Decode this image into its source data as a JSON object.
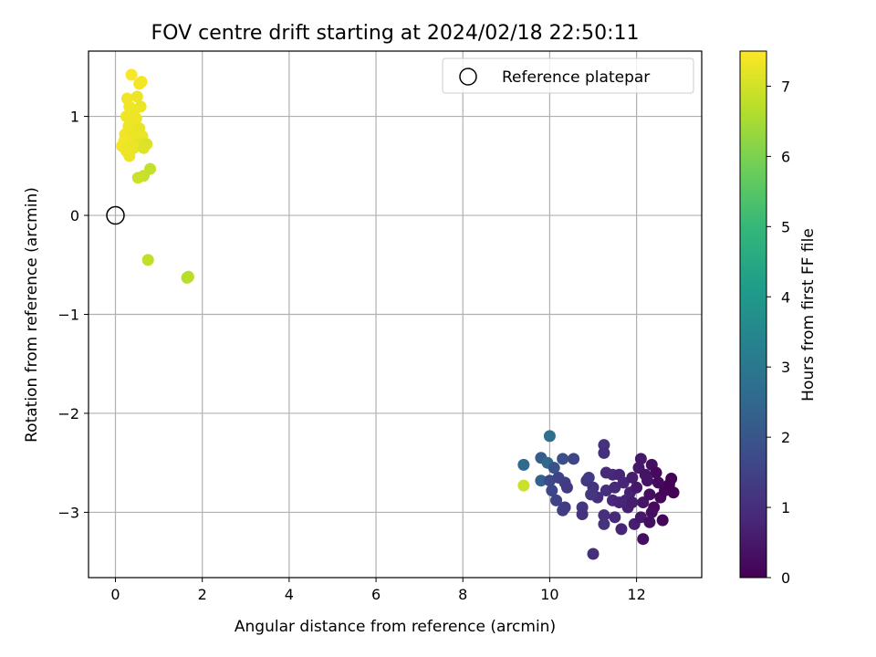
{
  "chart_data": {
    "type": "scatter",
    "title": "FOV centre drift starting at 2024/02/18 22:50:11",
    "xlabel": "Angular distance from reference (arcmin)",
    "ylabel": "Rotation from reference (arcmin)",
    "xlim": [
      -0.62,
      13.5
    ],
    "ylim": [
      -3.66,
      1.66
    ],
    "xticks": [
      0,
      2,
      4,
      6,
      8,
      10,
      12
    ],
    "xtick_labels": [
      "0",
      "2",
      "4",
      "6",
      "8",
      "10",
      "12"
    ],
    "yticks": [
      -3,
      -2,
      -1,
      0,
      1
    ],
    "ytick_labels": [
      "−3",
      "−2",
      "−1",
      "0",
      "1"
    ],
    "grid": true,
    "legend": {
      "placement": "top-right",
      "entries": [
        "Reference platepar"
      ]
    },
    "reference_point": {
      "x": 0,
      "y": 0,
      "label": "Reference platepar",
      "marker": "open-circle"
    },
    "colorbar": {
      "label": "Hours from first FF file",
      "colormap": "viridis",
      "range": [
        0,
        7.5
      ],
      "ticks": [
        0,
        1,
        2,
        3,
        4,
        5,
        6,
        7
      ],
      "tick_labels": [
        "0",
        "1",
        "2",
        "3",
        "4",
        "5",
        "6",
        "7"
      ]
    },
    "colors": {
      "viridis_stops": [
        "#440154",
        "#482878",
        "#3e4989",
        "#31688e",
        "#26828e",
        "#1f9e89",
        "#35b779",
        "#6ece58",
        "#b5de2b",
        "#fde725"
      ]
    },
    "points": [
      {
        "x": 0.37,
        "y": 1.42,
        "t": 7.45
      },
      {
        "x": 0.6,
        "y": 1.35,
        "t": 7.4
      },
      {
        "x": 0.55,
        "y": 1.33,
        "t": 7.38
      },
      {
        "x": 0.27,
        "y": 1.18,
        "t": 7.35
      },
      {
        "x": 0.5,
        "y": 1.2,
        "t": 7.3
      },
      {
        "x": 0.32,
        "y": 1.1,
        "t": 7.35
      },
      {
        "x": 0.58,
        "y": 1.1,
        "t": 7.3
      },
      {
        "x": 0.42,
        "y": 1.05,
        "t": 7.32
      },
      {
        "x": 0.25,
        "y": 1.0,
        "t": 7.34
      },
      {
        "x": 0.38,
        "y": 0.95,
        "t": 7.3
      },
      {
        "x": 0.48,
        "y": 0.98,
        "t": 7.31
      },
      {
        "x": 0.3,
        "y": 0.9,
        "t": 7.33
      },
      {
        "x": 0.55,
        "y": 0.88,
        "t": 7.25
      },
      {
        "x": 0.22,
        "y": 0.82,
        "t": 7.36
      },
      {
        "x": 0.4,
        "y": 0.82,
        "t": 7.3
      },
      {
        "x": 0.62,
        "y": 0.8,
        "t": 7.28
      },
      {
        "x": 0.35,
        "y": 0.78,
        "t": 7.3
      },
      {
        "x": 0.2,
        "y": 0.75,
        "t": 7.37
      },
      {
        "x": 0.48,
        "y": 0.75,
        "t": 7.27
      },
      {
        "x": 0.58,
        "y": 0.73,
        "t": 7.2
      },
      {
        "x": 0.72,
        "y": 0.72,
        "t": 7.1
      },
      {
        "x": 0.15,
        "y": 0.7,
        "t": 7.38
      },
      {
        "x": 0.28,
        "y": 0.7,
        "t": 7.32
      },
      {
        "x": 0.42,
        "y": 0.68,
        "t": 7.28
      },
      {
        "x": 0.65,
        "y": 0.68,
        "t": 7.15
      },
      {
        "x": 0.25,
        "y": 0.65,
        "t": 7.33
      },
      {
        "x": 0.32,
        "y": 0.6,
        "t": 7.3
      },
      {
        "x": 0.52,
        "y": 0.38,
        "t": 6.95
      },
      {
        "x": 0.65,
        "y": 0.4,
        "t": 6.9
      },
      {
        "x": 0.8,
        "y": 0.47,
        "t": 6.85
      },
      {
        "x": 0.75,
        "y": -0.45,
        "t": 6.8
      },
      {
        "x": 1.68,
        "y": -0.62,
        "t": 6.75
      },
      {
        "x": 1.65,
        "y": -0.63,
        "t": 6.7
      },
      {
        "x": 9.4,
        "y": -2.73,
        "t": 6.9
      },
      {
        "x": 10.0,
        "y": -2.23,
        "t": 2.8
      },
      {
        "x": 9.4,
        "y": -2.52,
        "t": 2.6
      },
      {
        "x": 9.8,
        "y": -2.45,
        "t": 2.2
      },
      {
        "x": 9.95,
        "y": -2.5,
        "t": 2.5
      },
      {
        "x": 10.3,
        "y": -2.46,
        "t": 1.8
      },
      {
        "x": 10.55,
        "y": -2.46,
        "t": 1.6
      },
      {
        "x": 10.1,
        "y": -2.55,
        "t": 1.9
      },
      {
        "x": 9.8,
        "y": -2.68,
        "t": 2.3
      },
      {
        "x": 10.0,
        "y": -2.68,
        "t": 1.7
      },
      {
        "x": 10.2,
        "y": -2.65,
        "t": 1.5
      },
      {
        "x": 10.35,
        "y": -2.7,
        "t": 1.4
      },
      {
        "x": 10.05,
        "y": -2.78,
        "t": 1.6
      },
      {
        "x": 10.4,
        "y": -2.75,
        "t": 1.3
      },
      {
        "x": 10.15,
        "y": -2.88,
        "t": 1.5
      },
      {
        "x": 10.3,
        "y": -2.98,
        "t": 1.4
      },
      {
        "x": 10.35,
        "y": -2.95,
        "t": 1.3
      },
      {
        "x": 10.75,
        "y": -2.95,
        "t": 1.2
      },
      {
        "x": 10.75,
        "y": -3.02,
        "t": 1.1
      },
      {
        "x": 10.85,
        "y": -2.68,
        "t": 1.2
      },
      {
        "x": 10.9,
        "y": -2.65,
        "t": 1.3
      },
      {
        "x": 11.0,
        "y": -2.75,
        "t": 1.1
      },
      {
        "x": 11.1,
        "y": -2.85,
        "t": 1.0
      },
      {
        "x": 10.95,
        "y": -2.82,
        "t": 1.2
      },
      {
        "x": 11.25,
        "y": -2.32,
        "t": 1.1
      },
      {
        "x": 11.25,
        "y": -2.4,
        "t": 1.0
      },
      {
        "x": 11.3,
        "y": -2.6,
        "t": 0.9
      },
      {
        "x": 11.45,
        "y": -2.62,
        "t": 0.9
      },
      {
        "x": 11.6,
        "y": -2.62,
        "t": 0.8
      },
      {
        "x": 11.3,
        "y": -2.78,
        "t": 1.0
      },
      {
        "x": 11.5,
        "y": -2.75,
        "t": 0.9
      },
      {
        "x": 11.7,
        "y": -2.7,
        "t": 0.8
      },
      {
        "x": 11.45,
        "y": -2.88,
        "t": 0.9
      },
      {
        "x": 11.6,
        "y": -2.9,
        "t": 0.8
      },
      {
        "x": 11.25,
        "y": -3.03,
        "t": 1.0
      },
      {
        "x": 11.25,
        "y": -3.12,
        "t": 1.1
      },
      {
        "x": 11.5,
        "y": -3.05,
        "t": 0.9
      },
      {
        "x": 11.65,
        "y": -3.17,
        "t": 0.8
      },
      {
        "x": 11.0,
        "y": -3.42,
        "t": 1.0
      },
      {
        "x": 11.8,
        "y": -2.95,
        "t": 0.7
      },
      {
        "x": 11.85,
        "y": -2.8,
        "t": 0.7
      },
      {
        "x": 11.9,
        "y": -2.65,
        "t": 0.6
      },
      {
        "x": 11.95,
        "y": -3.12,
        "t": 0.6
      },
      {
        "x": 12.05,
        "y": -2.55,
        "t": 0.5
      },
      {
        "x": 12.1,
        "y": -2.46,
        "t": 0.5
      },
      {
        "x": 12.0,
        "y": -2.75,
        "t": 0.5
      },
      {
        "x": 12.15,
        "y": -2.9,
        "t": 0.4
      },
      {
        "x": 12.1,
        "y": -3.05,
        "t": 0.5
      },
      {
        "x": 12.15,
        "y": -3.27,
        "t": 0.3
      },
      {
        "x": 12.25,
        "y": -2.68,
        "t": 0.4
      },
      {
        "x": 12.3,
        "y": -2.82,
        "t": 0.3
      },
      {
        "x": 12.35,
        "y": -2.52,
        "t": 0.3
      },
      {
        "x": 12.3,
        "y": -3.1,
        "t": 0.3
      },
      {
        "x": 12.4,
        "y": -2.95,
        "t": 0.2
      },
      {
        "x": 12.45,
        "y": -2.6,
        "t": 0.2
      },
      {
        "x": 12.5,
        "y": -2.7,
        "t": 0.2
      },
      {
        "x": 12.55,
        "y": -2.85,
        "t": 0.15
      },
      {
        "x": 12.6,
        "y": -3.08,
        "t": 0.1
      },
      {
        "x": 12.65,
        "y": -2.78,
        "t": 0.1
      },
      {
        "x": 12.8,
        "y": -2.66,
        "t": 0.05
      },
      {
        "x": 12.85,
        "y": -2.8,
        "t": 0.02
      },
      {
        "x": 12.75,
        "y": -2.72,
        "t": 0.05
      },
      {
        "x": 12.2,
        "y": -2.62,
        "t": 0.4
      },
      {
        "x": 11.75,
        "y": -2.88,
        "t": 0.8
      },
      {
        "x": 12.35,
        "y": -3.0,
        "t": 0.25
      },
      {
        "x": 11.9,
        "y": -2.9,
        "t": 0.6
      }
    ]
  }
}
